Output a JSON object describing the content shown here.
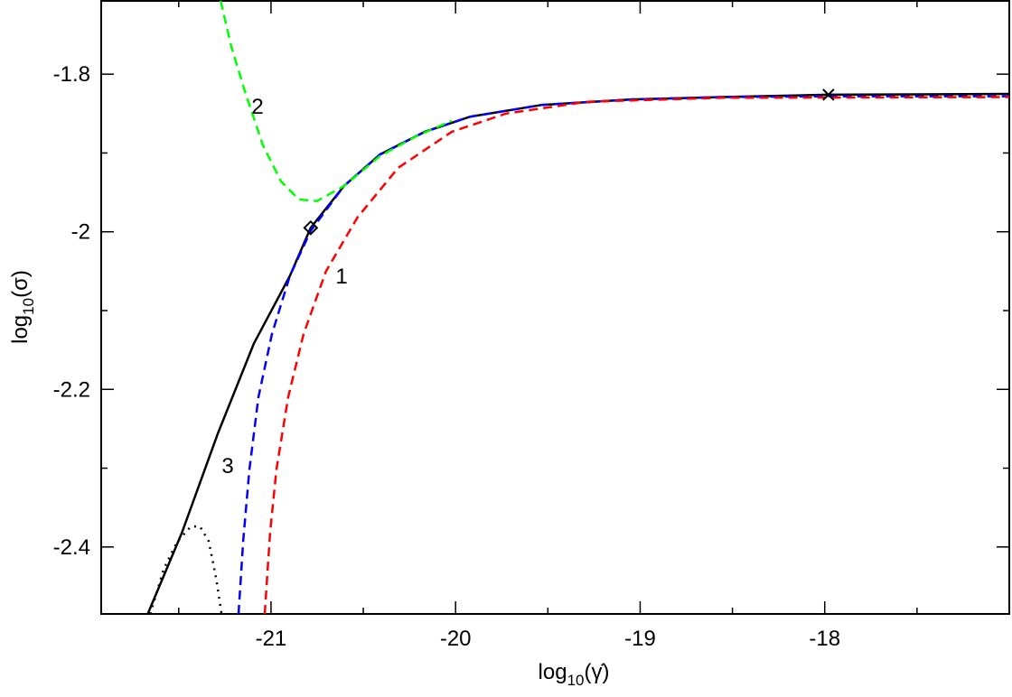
{
  "chart_data": {
    "type": "line",
    "xlabel_parts": [
      "log",
      "10",
      "(γ̇)"
    ],
    "ylabel_parts": [
      "log",
      "10",
      "(σ)"
    ],
    "xlim": [
      -21.92,
      -17.0
    ],
    "ylim": [
      -2.485,
      -1.707
    ],
    "xticks": [
      -21,
      -20,
      -19,
      -18
    ],
    "yticks": [
      -2.4,
      -2.2,
      -2,
      -1.8
    ],
    "xticks_minor": [
      -21.5,
      -20.5,
      -19.5,
      -18.5,
      -17.5
    ],
    "yticks_minor": [
      -2.3,
      -2.1,
      -1.9
    ],
    "series": [
      {
        "color": "#000000",
        "style": "solid",
        "x": [
          -21.668,
          -21.483,
          -21.288,
          -21.093,
          -20.898,
          -20.785,
          -20.605,
          -20.41,
          -20.166,
          -19.922,
          -19.532,
          -19.044,
          -18.556,
          -17.985,
          -17.0
        ],
        "y": [
          -2.485,
          -2.382,
          -2.256,
          -2.142,
          -2.056,
          -1.995,
          -1.942,
          -1.902,
          -1.873,
          -1.854,
          -1.839,
          -1.832,
          -1.829,
          -1.826,
          -1.825
        ]
      },
      {
        "color": "#0000ff",
        "style": "dashed",
        "x": [
          -21.176,
          -21.151,
          -21.117,
          -21.068,
          -20.995,
          -20.898,
          -20.785,
          -20.605,
          -20.41,
          -20.166,
          -19.922,
          -19.532,
          -19.044,
          -18.556,
          -17.985,
          -17.0
        ],
        "y": [
          -2.485,
          -2.393,
          -2.302,
          -2.21,
          -2.13,
          -2.056,
          -1.999,
          -1.942,
          -1.902,
          -1.873,
          -1.854,
          -1.839,
          -1.832,
          -1.829,
          -1.828,
          -1.828
        ]
      },
      {
        "color": "#ff0000",
        "style": "dashed",
        "x": [
          -21.034,
          -21.005,
          -20.971,
          -20.907,
          -20.824,
          -20.702,
          -20.532,
          -20.312,
          -20.02,
          -19.727,
          -19.288,
          -18.556,
          -17.0
        ],
        "y": [
          -2.485,
          -2.382,
          -2.302,
          -2.21,
          -2.13,
          -2.05,
          -1.982,
          -1.919,
          -1.873,
          -1.85,
          -1.835,
          -1.83,
          -1.829
        ]
      },
      {
        "color": "#00ff00",
        "style": "dashed",
        "x": [
          -21.273,
          -21.215,
          -21.141,
          -21.044,
          -20.946,
          -20.849,
          -20.751,
          -20.605,
          -20.41,
          -20.215,
          -20.02
        ],
        "y": [
          -1.707,
          -1.765,
          -1.822,
          -1.89,
          -1.936,
          -1.959,
          -1.961,
          -1.942,
          -1.904,
          -1.879,
          -1.859
        ]
      },
      {
        "color": "#000000",
        "style": "dotted",
        "x": [
          -21.654,
          -21.58,
          -21.507,
          -21.434,
          -21.385,
          -21.337,
          -21.298,
          -21.268
        ],
        "y": [
          -2.485,
          -2.427,
          -2.393,
          -2.374,
          -2.374,
          -2.393,
          -2.439,
          -2.485
        ]
      }
    ],
    "markers": [
      {
        "symbol": "diamond",
        "x": -20.785,
        "y": -1.995
      },
      {
        "symbol": "cross",
        "x": -17.98,
        "y": -1.826
      }
    ],
    "annotations": [
      "2",
      "1",
      "3"
    ]
  }
}
